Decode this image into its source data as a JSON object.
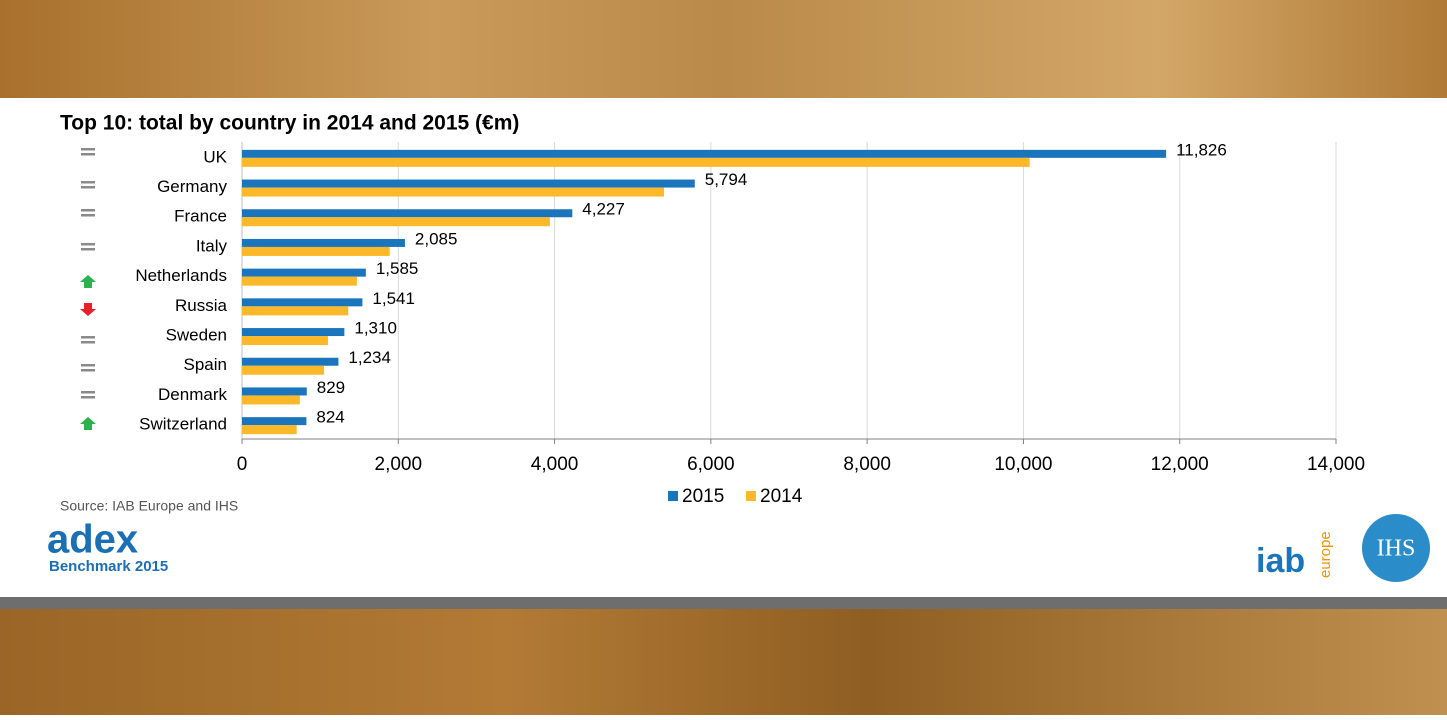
{
  "chart_data": {
    "type": "bar",
    "orientation": "horizontal",
    "title": "Top 10: total by country in 2014 and 2015 (€m)",
    "categories": [
      "UK",
      "Germany",
      "France",
      "Italy",
      "Netherlands",
      "Russia",
      "Sweden",
      "Spain",
      "Denmark",
      "Switzerland"
    ],
    "series": [
      {
        "name": "2015",
        "color": "#1a75bc",
        "values": [
          11826,
          5794,
          4227,
          2085,
          1585,
          1541,
          1310,
          1234,
          829,
          824
        ],
        "value_labels": [
          "11,826",
          "5,794",
          "4,227",
          "2,085",
          "1,585",
          "1,541",
          "1,310",
          "1,234",
          "829",
          "824"
        ]
      },
      {
        "name": "2014",
        "color": "#fbb829",
        "values": [
          10080,
          5400,
          3940,
          1890,
          1470,
          1360,
          1100,
          1050,
          740,
          700
        ]
      }
    ],
    "xlim": [
      0,
      14000
    ],
    "xticks": [
      0,
      {
        "value": 2000,
        "label": "2,000"
      },
      {
        "value": 4000,
        "label": "4,000"
      },
      {
        "value": 6000,
        "label": "6,000"
      },
      {
        "value": 8000,
        "label": "8,000"
      },
      {
        "value": 10000,
        "label": "10,000"
      },
      {
        "value": 12000,
        "label": "12,000"
      },
      {
        "value": 14000,
        "label": "14,000"
      }
    ],
    "grid": true,
    "legend": "bottom",
    "source": "Source: IAB Europe and IHS"
  },
  "logos": {
    "adex": "adex",
    "benchmark": "Benchmark 2015",
    "iab": "iab",
    "europe": "europe",
    "ihs": "IHS"
  }
}
